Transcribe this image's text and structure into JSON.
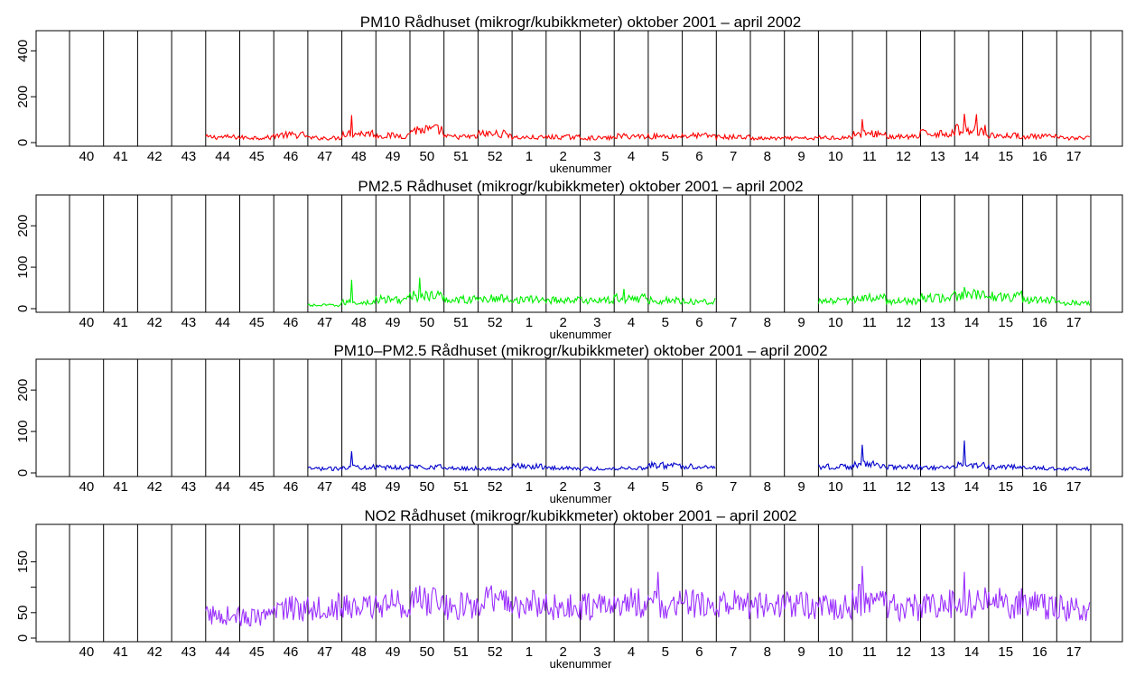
{
  "chart_data": [
    {
      "type": "line",
      "title": "PM10 Rådhuset (mikrogr/kubikkmeter) oktober 2001 – april 2002",
      "xlabel": "ukenummer",
      "ylabel": "",
      "x_ticks": [
        "40",
        "41",
        "42",
        "43",
        "44",
        "45",
        "46",
        "47",
        "48",
        "49",
        "50",
        "51",
        "52",
        "1",
        "2",
        "3",
        "4",
        "5",
        "6",
        "7",
        "8",
        "9",
        "10",
        "11",
        "12",
        "13",
        "14",
        "15",
        "16",
        "17"
      ],
      "y_ticks": [
        0,
        200,
        400
      ],
      "ylim": [
        0,
        480
      ],
      "grid": "vertical week separators",
      "color": "#ff0000",
      "series": [
        {
          "values_by_week": [
            null,
            null,
            null,
            null,
            24,
            22,
            33,
            20,
            40,
            30,
            55,
            25,
            38,
            22,
            24,
            20,
            28,
            27,
            30,
            24,
            18,
            18,
            22,
            38,
            25,
            40,
            55,
            30,
            26,
            20
          ],
          "peaks": [
            {
              "week": "48",
              "value": 120
            },
            {
              "week": "11",
              "value": 102
            },
            {
              "week": "14",
              "value": 126
            },
            {
              "week": "14",
              "value": 124
            }
          ]
        }
      ]
    },
    {
      "type": "line",
      "title": "PM2.5 Rådhuset (mikrogr/kubikkmeter) oktober 2001 – april 2002",
      "xlabel": "ukenummer",
      "ylabel": "",
      "x_ticks": [
        "40",
        "41",
        "42",
        "43",
        "44",
        "45",
        "46",
        "47",
        "48",
        "49",
        "50",
        "51",
        "52",
        "1",
        "2",
        "3",
        "4",
        "5",
        "6",
        "7",
        "8",
        "9",
        "10",
        "11",
        "12",
        "13",
        "14",
        "15",
        "16",
        "17"
      ],
      "y_ticks": [
        0,
        100,
        200
      ],
      "ylim": [
        0,
        270
      ],
      "grid": "vertical week separators",
      "color": "#00ee00",
      "series": [
        {
          "values_by_week": [
            null,
            null,
            null,
            null,
            null,
            null,
            null,
            8,
            15,
            22,
            30,
            22,
            24,
            22,
            21,
            20,
            25,
            20,
            18,
            null,
            null,
            null,
            18,
            25,
            18,
            26,
            32,
            30,
            20,
            14
          ],
          "peaks": [
            {
              "week": "48",
              "value": 70
            },
            {
              "week": "50",
              "value": 75
            },
            {
              "week": "4",
              "value": 48
            },
            {
              "week": "14",
              "value": 52
            }
          ]
        }
      ]
    },
    {
      "type": "line",
      "title": "PM10–PM2.5 Rådhuset (mikrogr/kubikkmeter) oktober 2001 – april 2002",
      "xlabel": "ukenummer",
      "ylabel": "",
      "x_ticks": [
        "40",
        "41",
        "42",
        "43",
        "44",
        "45",
        "46",
        "47",
        "48",
        "49",
        "50",
        "51",
        "52",
        "1",
        "2",
        "3",
        "4",
        "5",
        "6",
        "7",
        "8",
        "9",
        "10",
        "11",
        "12",
        "13",
        "14",
        "15",
        "16",
        "17"
      ],
      "y_ticks": [
        0,
        100,
        200
      ],
      "ylim": [
        0,
        270
      ],
      "grid": "vertical week separators",
      "color": "#0000cc",
      "series": [
        {
          "values_by_week": [
            null,
            null,
            null,
            null,
            null,
            null,
            null,
            10,
            15,
            13,
            15,
            11,
            10,
            16,
            12,
            10,
            12,
            18,
            16,
            null,
            null,
            null,
            15,
            20,
            14,
            12,
            18,
            14,
            12,
            10
          ],
          "peaks": [
            {
              "week": "48",
              "value": 52
            },
            {
              "week": "11",
              "value": 68
            },
            {
              "week": "14",
              "value": 78
            }
          ]
        }
      ]
    },
    {
      "type": "line",
      "title": "NO2 Rådhuset (mikrogr/kubikkmeter) oktober 2001 – april 2002",
      "xlabel": "ukenummer",
      "ylabel": "",
      "x_ticks": [
        "40",
        "41",
        "42",
        "43",
        "44",
        "45",
        "46",
        "47",
        "48",
        "49",
        "50",
        "51",
        "52",
        "1",
        "2",
        "3",
        "4",
        "5",
        "6",
        "7",
        "8",
        "9",
        "10",
        "11",
        "12",
        "13",
        "14",
        "15",
        "16",
        "17"
      ],
      "y_ticks": [
        0,
        50,
        100,
        150
      ],
      "y_tick_labels": [
        "0",
        "50",
        "150"
      ],
      "ylim": [
        0,
        220
      ],
      "grid": "vertical week separators",
      "color": "#9b30ff",
      "series": [
        {
          "values_by_week": [
            null,
            null,
            null,
            null,
            45,
            40,
            60,
            62,
            60,
            68,
            72,
            62,
            72,
            65,
            60,
            62,
            70,
            65,
            66,
            65,
            66,
            66,
            60,
            75,
            60,
            66,
            70,
            68,
            65,
            58
          ],
          "peaks": [
            {
              "week": "5",
              "value": 130
            },
            {
              "week": "11",
              "value": 142
            },
            {
              "week": "14",
              "value": 130
            }
          ]
        }
      ]
    }
  ]
}
